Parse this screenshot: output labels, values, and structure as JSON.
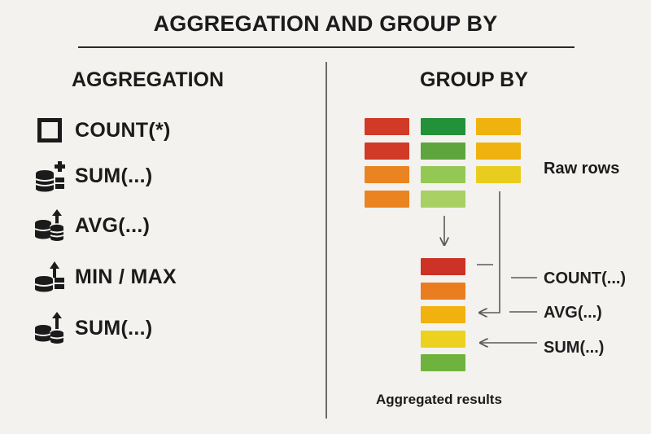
{
  "title": "AGGREGATION AND GROUP BY",
  "left_panel": {
    "heading": "AGGREGATION",
    "items": [
      {
        "label": "COUNT(*)",
        "icon": "square-outline-icon"
      },
      {
        "label": "SUM(...)",
        "icon": "database-plus-icon"
      },
      {
        "label": "AVG(...)",
        "icon": "database-stack-arrow-up-icon"
      },
      {
        "label": "MIN / MAX",
        "icon": "database-arrow-up-icon"
      },
      {
        "label": "SUM(...)",
        "icon": "database-stack-arrow-up-icon"
      }
    ]
  },
  "right_panel": {
    "heading": "GROUP BY",
    "raw_rows_label": "Raw rows",
    "aggregated_label": "Aggregated results",
    "raw_columns": [
      {
        "colors": [
          "#d03a26",
          "#d03a26",
          "#ea8420",
          "#ea8420"
        ]
      },
      {
        "colors": [
          "#23903a",
          "#5ea53d",
          "#94c854",
          "#a9d063"
        ]
      },
      {
        "colors": [
          "#f0b20e",
          "#f0b20e",
          "#e9cd1e"
        ]
      }
    ],
    "result_colors": [
      "#cc3226",
      "#ea7d1f",
      "#f1b10f",
      "#ecd21f",
      "#6fb33e"
    ],
    "function_labels": [
      "COUNT(...)",
      "AVG(...)",
      "SUM(...)"
    ]
  },
  "colors": {
    "background": "#f3f2ef",
    "text": "#1b1b1b",
    "line": "#5a5a5a"
  }
}
